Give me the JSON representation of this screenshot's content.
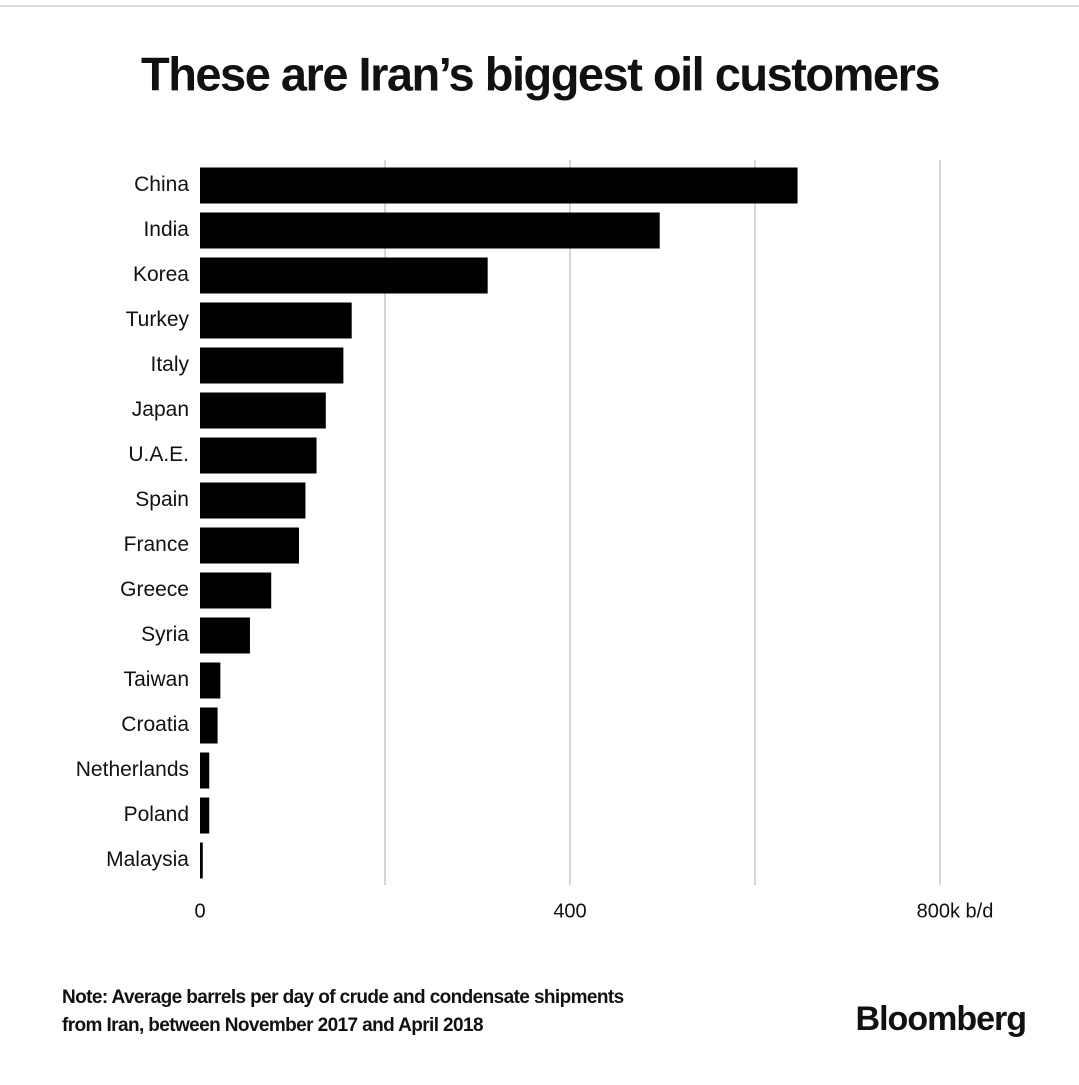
{
  "chart_data": {
    "type": "hbar",
    "title": "These are Iran’s biggest oil customers",
    "categories": [
      "China",
      "India",
      "Korea",
      "Turkey",
      "Italy",
      "Japan",
      "U.A.E.",
      "Spain",
      "France",
      "Greece",
      "Syria",
      "Taiwan",
      "Croatia",
      "Netherlands",
      "Poland",
      "Malaysia"
    ],
    "values": [
      646,
      497,
      311,
      164,
      155,
      136,
      126,
      114,
      107,
      77,
      54,
      22,
      19,
      10,
      10,
      3
    ],
    "color": "#000000",
    "xlim": [
      0,
      800
    ],
    "xticks": [
      0,
      400,
      {
        "value": 800,
        "label": "800k b/d"
      }
    ],
    "xminorticks": [
      200,
      600
    ],
    "grid": true,
    "note": [
      "Note: Average barrels per day of crude and condensate shipments",
      "from Iran, between November 2017 and April 2018"
    ],
    "source": "Bloomberg"
  }
}
